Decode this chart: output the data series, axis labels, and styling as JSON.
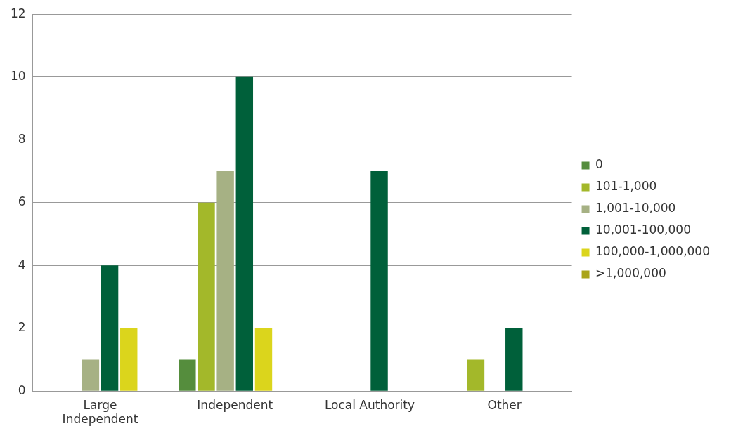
{
  "chart_data": {
    "type": "bar",
    "categories": [
      "Large Independent",
      "Independent",
      "Local Authority",
      "Other"
    ],
    "series": [
      {
        "name": "0",
        "color": "#558d3d",
        "values": [
          0,
          1,
          0,
          0
        ]
      },
      {
        "name": "101-1,000",
        "color": "#a3b82a",
        "values": [
          0,
          6,
          0,
          1
        ]
      },
      {
        "name": "1,001-10,000",
        "color": "#a6b184",
        "values": [
          1,
          7,
          0,
          0
        ]
      },
      {
        "name": "10,001-100,000",
        "color": "#00603a",
        "values": [
          4,
          10,
          7,
          2
        ]
      },
      {
        "name": "100,000-1,000,000",
        "color": "#dbd51c",
        "values": [
          2,
          2,
          0,
          0
        ]
      },
      {
        "name": ">1,000,000",
        "color": "#aaa419",
        "values": [
          0,
          0,
          0,
          0
        ]
      }
    ],
    "ylim": [
      0,
      12
    ],
    "yticks": [
      0,
      2,
      4,
      6,
      8,
      10,
      12
    ],
    "grid": "y",
    "legend": "right"
  }
}
